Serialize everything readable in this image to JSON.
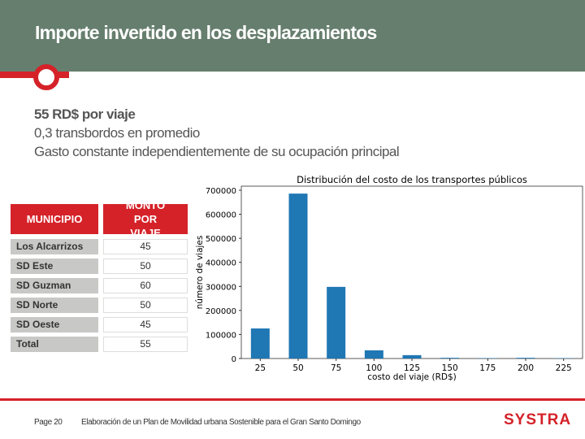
{
  "header": {
    "title": "Importe invertido en los desplazamientos"
  },
  "bullets": [
    "55 RD$ por viaje",
    "0,3 transbordos en promedio",
    "Gasto constante independientemente de su ocupación principal"
  ],
  "table": {
    "headers": [
      "MUNICIPIO",
      "MONTO POR VIAJE"
    ],
    "rows": [
      [
        "Los Alcarrizos",
        "45"
      ],
      [
        "SD Este",
        "50"
      ],
      [
        "SD Guzman",
        "60"
      ],
      [
        "SD Norte",
        "50"
      ],
      [
        "SD Oeste",
        "45"
      ],
      [
        "Total",
        "55"
      ]
    ]
  },
  "chart_data": {
    "type": "bar",
    "title": "Distribución del costo de los transportes públicos",
    "xlabel": "costo del viaje (RD$)",
    "ylabel": "número de viajes",
    "categories": [
      "25",
      "50",
      "75",
      "100",
      "125",
      "150",
      "175",
      "200",
      "225"
    ],
    "values": [
      125000,
      686000,
      298000,
      34000,
      14000,
      3000,
      1500,
      3000,
      1500
    ],
    "ylim": [
      0,
      700000
    ],
    "yticks": [
      "0",
      "100000",
      "200000",
      "300000",
      "400000",
      "500000",
      "600000",
      "700000"
    ],
    "color": "#1f77b4",
    "grid": false
  },
  "footer": {
    "page": "Page 20",
    "text": "Elaboración de un Plan de Movilidad urbana Sostenible para el Gran Santo Domingo",
    "logo": "SYSTRA"
  }
}
